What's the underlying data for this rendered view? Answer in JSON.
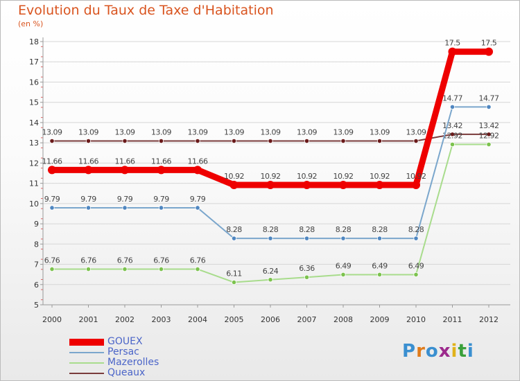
{
  "chart_data": {
    "type": "line",
    "title": "Evolution du Taux de Taxe d'Habitation",
    "unit_label": "(en %)",
    "xlabel": "",
    "ylabel": "",
    "categories": [
      "2000",
      "2001",
      "2002",
      "2003",
      "2004",
      "2005",
      "2006",
      "2007",
      "2008",
      "2009",
      "2010",
      "2011",
      "2012"
    ],
    "ylim": [
      5,
      18
    ],
    "yticks": [
      5,
      6,
      7,
      8,
      9,
      10,
      11,
      12,
      13,
      14,
      15,
      16,
      17,
      18
    ],
    "grid": "horizontal",
    "legend_position": "bottom-left",
    "series": [
      {
        "name": "Queaux",
        "color": "#7a3b3b",
        "marker": "#6a1b1b",
        "values": [
          13.09,
          13.09,
          13.09,
          13.09,
          13.09,
          13.09,
          13.09,
          13.09,
          13.09,
          13.09,
          13.09,
          13.42,
          13.42
        ],
        "labels": [
          "13.09",
          "13.09",
          "13.09",
          "13.09",
          "13.09",
          "13.09",
          "13.09",
          "13.09",
          "13.09",
          "13.09",
          "13.09",
          "13.42",
          "13.42"
        ]
      },
      {
        "name": "Mazerolles",
        "color": "#a8dc8c",
        "marker": "#7cc24e",
        "values": [
          6.76,
          6.76,
          6.76,
          6.76,
          6.76,
          6.11,
          6.24,
          6.36,
          6.49,
          6.49,
          6.49,
          12.92,
          12.92
        ],
        "labels": [
          "6.76",
          "6.76",
          "6.76",
          "6.76",
          "6.76",
          "6.11",
          "6.24",
          "6.36",
          "6.49",
          "6.49",
          "6.49",
          "12.92",
          "12.92"
        ]
      },
      {
        "name": "Persac",
        "color": "#7aa6cc",
        "marker": "#4f86c0",
        "values": [
          9.79,
          9.79,
          9.79,
          9.79,
          9.79,
          8.28,
          8.28,
          8.28,
          8.28,
          8.28,
          8.28,
          14.77,
          14.77
        ],
        "labels": [
          "9.79",
          "9.79",
          "9.79",
          "9.79",
          "9.79",
          "8.28",
          "8.28",
          "8.28",
          "8.28",
          "8.28",
          "8.28",
          "14.77",
          "14.77"
        ]
      },
      {
        "name": "GOUEX",
        "color": "#ee0000",
        "marker": "#ee0000",
        "values": [
          11.66,
          11.66,
          11.66,
          11.66,
          11.66,
          10.92,
          10.92,
          10.92,
          10.92,
          10.92,
          10.92,
          17.5,
          17.5
        ],
        "labels": [
          "11.66",
          "11.66",
          "11.66",
          "11.66",
          "11.66",
          "10.92",
          "10.92",
          "10.92",
          "10.92",
          "10.92",
          "10.92",
          "17.5",
          "17.5"
        ]
      }
    ],
    "legend": [
      "GOUEX",
      "Persac",
      "Mazerolles",
      "Queaux"
    ]
  },
  "logo": {
    "letters": [
      "P",
      "r",
      "o",
      "x",
      "i",
      "t",
      "i"
    ],
    "colors": [
      "#3a8fd0",
      "#e07b1a",
      "#3a8fd0",
      "#9c2a8c",
      "#e0b21a",
      "#3aa03a",
      "#3a8fd0"
    ]
  }
}
